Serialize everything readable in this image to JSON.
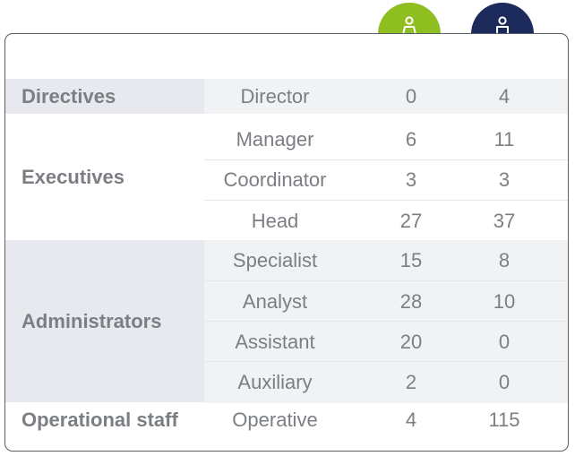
{
  "columns": {
    "female_icon": "female-person-icon",
    "male_icon": "male-person-icon",
    "female_color": "#8fbe21",
    "male_color": "#1d2a5c"
  },
  "categories": [
    {
      "name": "Directives"
    },
    {
      "name": "Executives"
    },
    {
      "name": "Administrators"
    },
    {
      "name": "Operational staff"
    }
  ],
  "rows": [
    {
      "role": "Director",
      "female": "0",
      "male": "4"
    },
    {
      "role": "Manager",
      "female": "6",
      "male": "11"
    },
    {
      "role": "Coordinator",
      "female": "3",
      "male": "3"
    },
    {
      "role": "Head",
      "female": "27",
      "male": "37"
    },
    {
      "role": "Specialist",
      "female": "15",
      "male": "8"
    },
    {
      "role": "Analyst",
      "female": "28",
      "male": "10"
    },
    {
      "role": "Assistant",
      "female": "20",
      "male": "0"
    },
    {
      "role": "Auxiliary",
      "female": "2",
      "male": "0"
    },
    {
      "role": "Operative",
      "female": "4",
      "male": "115"
    }
  ]
}
